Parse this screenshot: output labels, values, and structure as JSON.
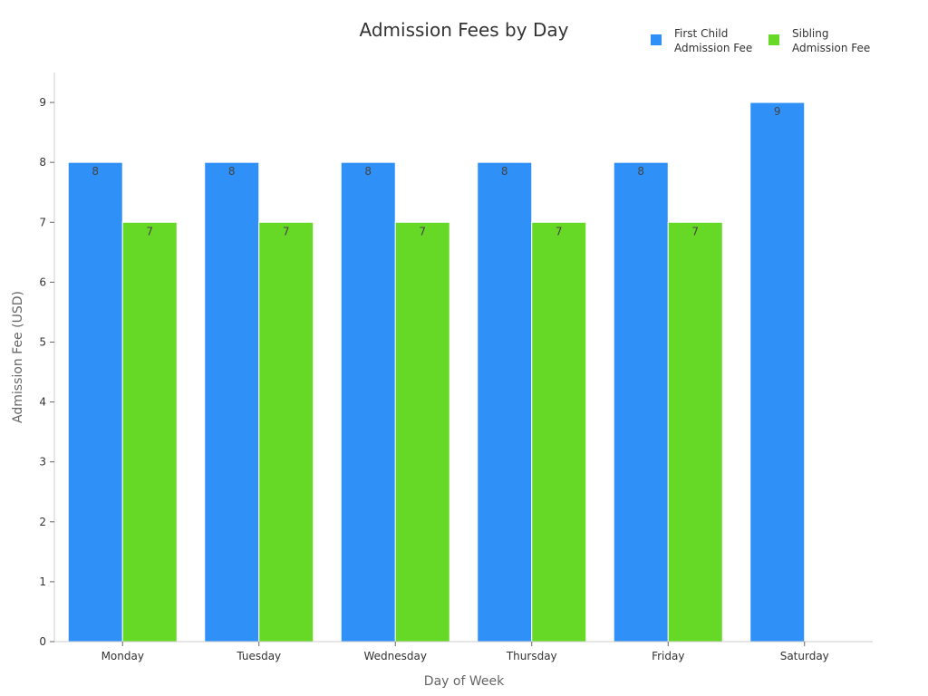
{
  "chart_data": {
    "type": "bar",
    "title": "Admission Fees by Day",
    "xlabel": "Day of Week",
    "ylabel": "Admission Fee (USD)",
    "categories": [
      "Monday",
      "Tuesday",
      "Wednesday",
      "Thursday",
      "Friday",
      "Saturday"
    ],
    "series": [
      {
        "name_lines": [
          "First Child",
          "Admission Fee"
        ],
        "color": "#2f91f7",
        "values": [
          8,
          8,
          8,
          8,
          8,
          9
        ]
      },
      {
        "name_lines": [
          "Sibling",
          "Admission Fee"
        ],
        "color": "#66d926",
        "values": [
          7,
          7,
          7,
          7,
          7,
          null
        ]
      }
    ],
    "ylim": [
      0,
      9.5
    ],
    "yticks": [
      0,
      1,
      2,
      3,
      4,
      5,
      6,
      7,
      8,
      9
    ],
    "grid": false,
    "legend_position": "top-right",
    "data_labels": true
  }
}
